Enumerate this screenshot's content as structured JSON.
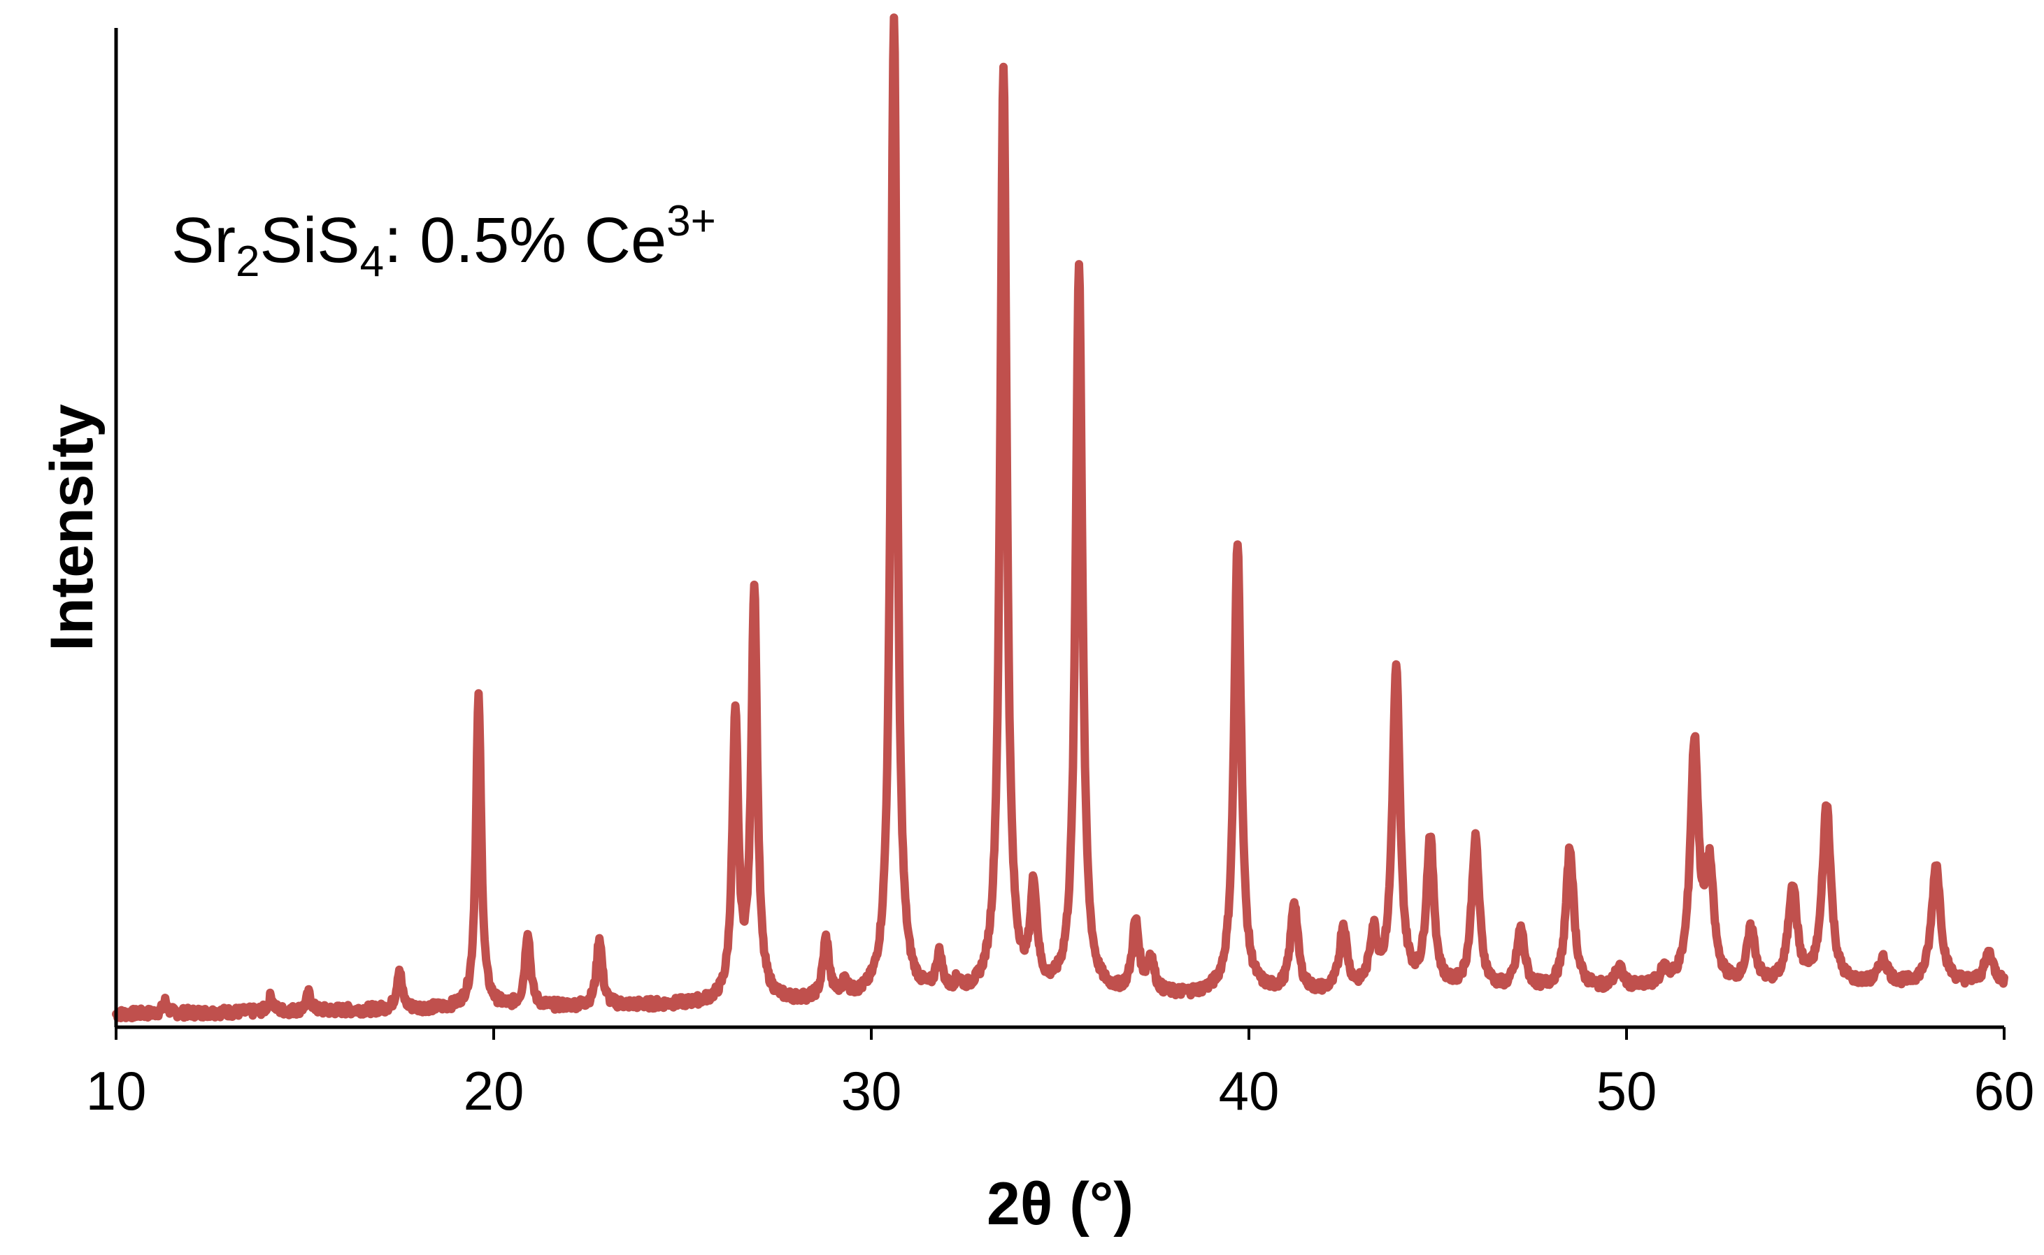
{
  "chart_data": {
    "type": "line",
    "xlabel": "2θ (°)",
    "ylabel": "Intensity",
    "xlim": [
      10,
      60
    ],
    "ylim": [
      0,
      100
    ],
    "x_ticks": [
      "10",
      "20",
      "30",
      "40",
      "50",
      "60"
    ],
    "y_ticks_shown": false,
    "grid": false,
    "legend": "none",
    "annotation": {
      "base": "Sr",
      "sub1": "2",
      "mid": "SiS",
      "sub2": "4",
      "rest": ": 0.5% Ce",
      "sup": "3+"
    },
    "series": [
      {
        "color": "#c0504d",
        "baseline": 1.3,
        "baseline_slope": 0.06,
        "peaks": [
          {
            "x": 11.3,
            "y": 1.2
          },
          {
            "x": 14.1,
            "y": 1.5
          },
          {
            "x": 15.1,
            "y": 1.7
          },
          {
            "x": 17.5,
            "y": 4.0
          },
          {
            "x": 19.6,
            "y": 31.0
          },
          {
            "x": 20.9,
            "y": 7.5
          },
          {
            "x": 22.8,
            "y": 6.8
          },
          {
            "x": 26.4,
            "y": 28.0
          },
          {
            "x": 26.9,
            "y": 41.0
          },
          {
            "x": 28.8,
            "y": 6.0
          },
          {
            "x": 29.3,
            "y": 1.5
          },
          {
            "x": 30.6,
            "y": 98.0
          },
          {
            "x": 31.8,
            "y": 3.8
          },
          {
            "x": 32.3,
            "y": 1.2
          },
          {
            "x": 33.5,
            "y": 93.0
          },
          {
            "x": 34.3,
            "y": 10.0
          },
          {
            "x": 35.5,
            "y": 73.0
          },
          {
            "x": 37.0,
            "y": 7.0
          },
          {
            "x": 37.4,
            "y": 3.5
          },
          {
            "x": 39.7,
            "y": 45.0
          },
          {
            "x": 41.2,
            "y": 9.0
          },
          {
            "x": 42.5,
            "y": 6.5
          },
          {
            "x": 43.3,
            "y": 5.5
          },
          {
            "x": 43.9,
            "y": 32.0
          },
          {
            "x": 44.8,
            "y": 15.0
          },
          {
            "x": 46.0,
            "y": 15.0
          },
          {
            "x": 47.2,
            "y": 6.0
          },
          {
            "x": 48.5,
            "y": 14.0
          },
          {
            "x": 49.8,
            "y": 2.0
          },
          {
            "x": 51.0,
            "y": 1.5
          },
          {
            "x": 51.8,
            "y": 24.0
          },
          {
            "x": 52.2,
            "y": 11.0
          },
          {
            "x": 53.3,
            "y": 5.5
          },
          {
            "x": 54.4,
            "y": 10.0
          },
          {
            "x": 55.3,
            "y": 18.0
          },
          {
            "x": 56.8,
            "y": 2.5
          },
          {
            "x": 58.2,
            "y": 12.0
          },
          {
            "x": 59.6,
            "y": 3.0
          }
        ]
      }
    ]
  }
}
